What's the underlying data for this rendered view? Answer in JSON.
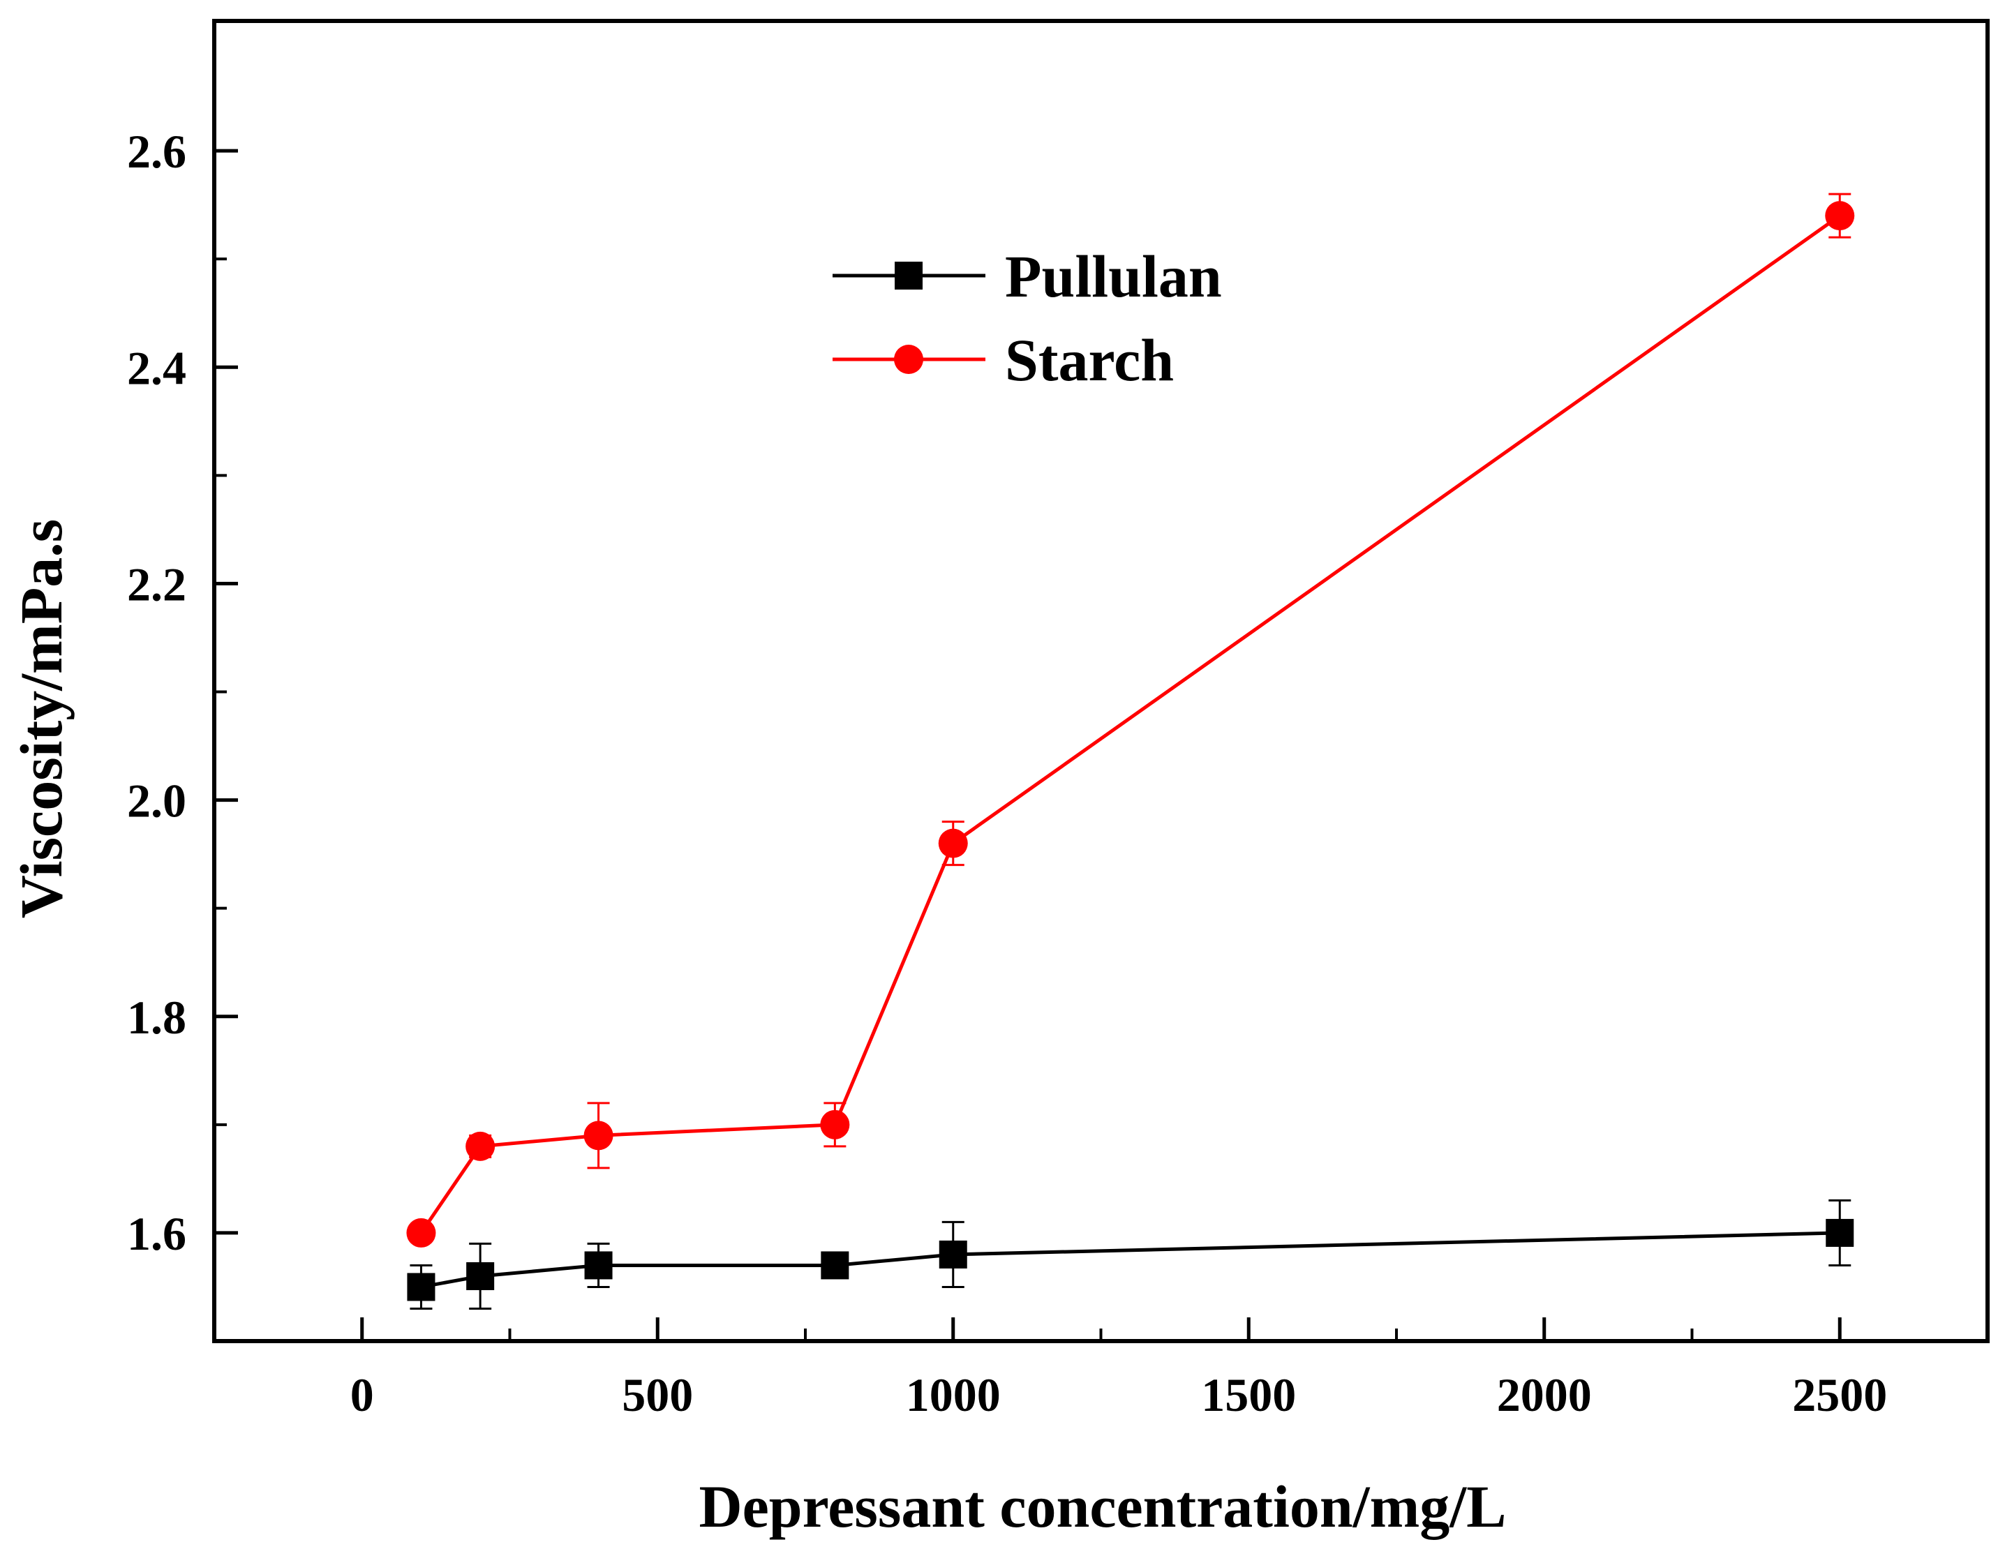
{
  "chart_data": {
    "type": "line",
    "title": "",
    "xlabel": "Depressant concentration/mg/L",
    "ylabel": "Viscosity/mPa.s",
    "xlim": [
      -250,
      2750
    ],
    "ylim": [
      1.5,
      2.72
    ],
    "x_ticks": [
      0,
      500,
      1000,
      1500,
      2000,
      2500
    ],
    "x_tick_labels": [
      "0",
      "500",
      "1000",
      "1500",
      "2000",
      "2500"
    ],
    "x_minor_ticks": [
      250,
      750,
      1250,
      1750,
      2250
    ],
    "y_ticks": [
      1.6,
      1.8,
      2.0,
      2.2,
      2.4,
      2.6
    ],
    "y_tick_labels": [
      "1.6",
      "1.8",
      "2.0",
      "2.2",
      "2.4",
      "2.6"
    ],
    "y_minor_ticks": [
      1.7,
      1.9,
      2.1,
      2.3,
      2.5
    ],
    "legend_position": "upper-center",
    "series": [
      {
        "name": "Pullulan",
        "color": "#000000",
        "marker": "square",
        "x": [
          100,
          200,
          400,
          800,
          1000,
          2500
        ],
        "y": [
          1.55,
          1.56,
          1.57,
          1.57,
          1.58,
          1.6
        ],
        "error": [
          0.02,
          0.03,
          0.02,
          0.005,
          0.03,
          0.03
        ]
      },
      {
        "name": "Starch",
        "color": "#ff0000",
        "marker": "circle",
        "x": [
          100,
          200,
          400,
          800,
          1000,
          2500
        ],
        "y": [
          1.6,
          1.68,
          1.69,
          1.7,
          1.96,
          2.54
        ],
        "error": [
          0.005,
          0.01,
          0.03,
          0.02,
          0.02,
          0.02
        ]
      }
    ]
  }
}
